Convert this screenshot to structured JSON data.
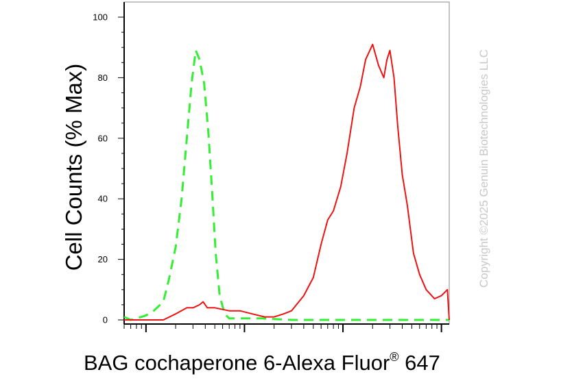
{
  "chart_data": {
    "type": "line",
    "title": "",
    "xlabel": "BAG cochaperone 6-Alexa Fluor",
    "xlabel_sup": "®",
    "xlabel_suffix": " 647",
    "ylabel": "Cell Counts (% Max)",
    "ylim": [
      0,
      100
    ],
    "yticks": [
      0,
      20,
      40,
      60,
      80,
      100
    ],
    "x_scale": "log",
    "xlim": [
      0.6,
      1200
    ],
    "grid": false,
    "legend": "none",
    "series": [
      {
        "color": "#33ee33",
        "style": "dashed",
        "x": [
          0.6,
          0.7,
          0.8,
          1.0,
          1.2,
          1.5,
          1.7,
          2.0,
          2.3,
          2.6,
          2.9,
          3.2,
          3.5,
          3.9,
          4.3,
          4.7,
          5.1,
          5.6,
          6.3,
          7.0,
          8.0,
          9.0,
          10,
          15,
          30,
          100,
          500,
          1200
        ],
        "y": [
          1,
          0,
          0.5,
          1.5,
          3,
          6,
          13,
          24,
          40,
          60,
          78,
          89,
          86,
          78,
          62,
          42,
          22,
          8,
          2,
          0.5,
          0.5,
          0.5,
          0.5,
          0.5,
          0,
          0,
          0,
          0
        ]
      },
      {
        "color": "#ee1111",
        "style": "solid",
        "x": [
          0.6,
          1.0,
          1.5,
          2.0,
          2.6,
          3.0,
          3.5,
          3.8,
          4.2,
          5.0,
          7.0,
          9.0,
          12,
          16,
          20,
          25,
          30,
          40,
          50,
          60,
          70,
          80,
          95,
          110,
          130,
          150,
          170,
          200,
          230,
          260,
          280,
          300,
          330,
          360,
          400,
          450,
          520,
          600,
          700,
          850,
          1000,
          1150,
          1200
        ],
        "y": [
          0,
          0,
          0,
          2,
          4,
          4,
          5,
          6,
          4,
          4,
          3,
          3,
          2,
          1,
          1,
          2,
          3,
          8,
          14,
          25,
          33,
          36,
          44,
          55,
          70,
          77,
          86,
          91,
          84,
          80,
          86,
          89,
          80,
          64,
          48,
          38,
          22,
          15,
          10,
          7,
          8,
          10,
          0
        ]
      }
    ],
    "copyright": "Copyright ©2025 Genuin Biotechnologies LLC"
  }
}
